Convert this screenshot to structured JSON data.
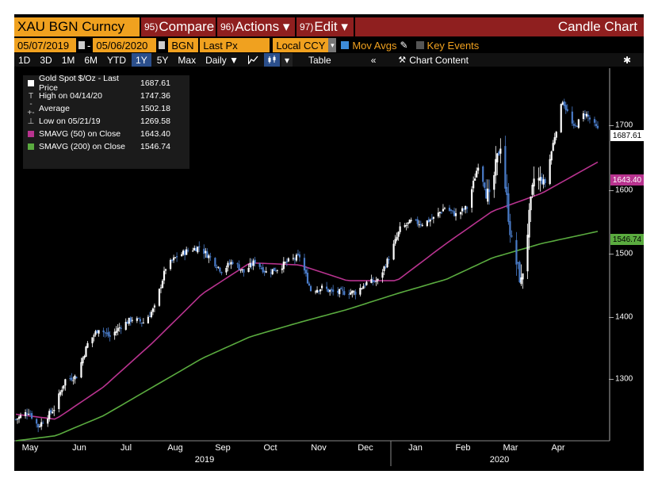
{
  "header": {
    "ticker": "XAU BGN Curncy",
    "compare_num": "95)",
    "compare_label": "Compare",
    "actions_num": "96)",
    "actions_label": "Actions ▾",
    "edit_num": "97)",
    "edit_label": "Edit ▾",
    "title": "Candle Chart"
  },
  "toolbar": {
    "start_date": "05/07/2019",
    "end_date": "05/06/2020",
    "source": "BGN",
    "field": "Last Px",
    "currency": "Local CCY",
    "mov_avgs": "Mov Avgs",
    "key_events": "Key Events"
  },
  "periods": [
    "1D",
    "3D",
    "1M",
    "6M",
    "YTD",
    "1Y",
    "5Y",
    "Max"
  ],
  "active_period": "1Y",
  "frequency": "Daily ▼",
  "table_label": "Table",
  "chart_content_label": "Chart Content",
  "colors": {
    "amber": "#f0a11f",
    "sma50": "#b8338f",
    "sma200": "#5aab3f",
    "candle_up": "#ffffff",
    "candle_down": "#4a7cc9"
  },
  "legend": [
    {
      "symbol": "square-white",
      "label": "Gold Spot $/Oz - Last Price",
      "value": "1687.61"
    },
    {
      "symbol": "T",
      "label": "High on 04/14/20",
      "value": "1747.36"
    },
    {
      "symbol": "-+-",
      "label": "Average",
      "value": "1502.18"
    },
    {
      "symbol": "⊥",
      "label": "Low on 05/21/19",
      "value": "1269.58"
    },
    {
      "symbol": "square-magenta",
      "label": "SMAVG (50)  on Close",
      "value": "1643.40"
    },
    {
      "symbol": "square-green",
      "label": "SMAVG (200)  on Close",
      "value": "1546.74"
    }
  ],
  "chart_data": {
    "type": "candlestick",
    "y_ticks": [
      "1700",
      "1600",
      "1500",
      "1400",
      "1300"
    ],
    "ylim": [
      1255,
      1772
    ],
    "x_months": [
      "May",
      "Jun",
      "Jul",
      "Aug",
      "Sep",
      "Oct",
      "Nov",
      "Dec",
      "Jan",
      "Feb",
      "Mar",
      "Apr"
    ],
    "x_years": [
      "2019",
      "2020"
    ],
    "last_price": "1687.61",
    "sma50_last": "1643.40",
    "sma200_last": "1546.74",
    "close_points": [
      [
        "2019-05-07",
        1285
      ],
      [
        "2019-05-15",
        1296
      ],
      [
        "2019-05-21",
        1275
      ],
      [
        "2019-05-31",
        1300
      ],
      [
        "2019-06-07",
        1340
      ],
      [
        "2019-06-14",
        1345
      ],
      [
        "2019-06-21",
        1390
      ],
      [
        "2019-06-28",
        1412
      ],
      [
        "2019-07-05",
        1400
      ],
      [
        "2019-07-12",
        1415
      ],
      [
        "2019-07-19",
        1425
      ],
      [
        "2019-07-26",
        1420
      ],
      [
        "2019-08-02",
        1440
      ],
      [
        "2019-08-09",
        1496
      ],
      [
        "2019-08-16",
        1512
      ],
      [
        "2019-08-23",
        1520
      ],
      [
        "2019-08-30",
        1525
      ],
      [
        "2019-09-06",
        1510
      ],
      [
        "2019-09-13",
        1492
      ],
      [
        "2019-09-20",
        1505
      ],
      [
        "2019-09-27",
        1490
      ],
      [
        "2019-10-04",
        1505
      ],
      [
        "2019-10-11",
        1490
      ],
      [
        "2019-10-18",
        1495
      ],
      [
        "2019-10-25",
        1505
      ],
      [
        "2019-11-01",
        1512
      ],
      [
        "2019-11-08",
        1465
      ],
      [
        "2019-11-15",
        1468
      ],
      [
        "2019-11-22",
        1462
      ],
      [
        "2019-11-29",
        1462
      ],
      [
        "2019-12-06",
        1462
      ],
      [
        "2019-12-13",
        1475
      ],
      [
        "2019-12-20",
        1478
      ],
      [
        "2019-12-27",
        1510
      ],
      [
        "2020-01-03",
        1550
      ],
      [
        "2020-01-10",
        1560
      ],
      [
        "2020-01-17",
        1558
      ],
      [
        "2020-01-24",
        1565
      ],
      [
        "2020-01-31",
        1580
      ],
      [
        "2020-02-07",
        1570
      ],
      [
        "2020-02-14",
        1580
      ],
      [
        "2020-02-21",
        1640
      ],
      [
        "2020-02-28",
        1590
      ],
      [
        "2020-03-06",
        1670
      ],
      [
        "2020-03-13",
        1530
      ],
      [
        "2020-03-19",
        1475
      ],
      [
        "2020-03-27",
        1620
      ],
      [
        "2020-04-03",
        1615
      ],
      [
        "2020-04-09",
        1680
      ],
      [
        "2020-04-14",
        1730
      ],
      [
        "2020-04-21",
        1690
      ],
      [
        "2020-04-28",
        1712
      ],
      [
        "2020-05-06",
        1688
      ]
    ],
    "sma50_points": [
      [
        "2019-05-07",
        1292
      ],
      [
        "2019-06-01",
        1285
      ],
      [
        "2019-07-01",
        1330
      ],
      [
        "2019-08-01",
        1392
      ],
      [
        "2019-09-01",
        1460
      ],
      [
        "2019-10-01",
        1503
      ],
      [
        "2019-11-01",
        1500
      ],
      [
        "2019-12-01",
        1478
      ],
      [
        "2020-01-01",
        1478
      ],
      [
        "2020-02-01",
        1530
      ],
      [
        "2020-03-01",
        1575
      ],
      [
        "2020-04-01",
        1600
      ],
      [
        "2020-05-06",
        1643.4
      ]
    ],
    "sma200_points": [
      [
        "2019-05-07",
        1255
      ],
      [
        "2019-06-01",
        1262
      ],
      [
        "2019-07-01",
        1290
      ],
      [
        "2019-08-01",
        1330
      ],
      [
        "2019-09-01",
        1370
      ],
      [
        "2019-10-01",
        1400
      ],
      [
        "2019-11-01",
        1420
      ],
      [
        "2019-12-01",
        1438
      ],
      [
        "2020-01-01",
        1460
      ],
      [
        "2020-02-01",
        1480
      ],
      [
        "2020-03-01",
        1510
      ],
      [
        "2020-04-01",
        1530
      ],
      [
        "2020-05-06",
        1546.74
      ]
    ]
  }
}
